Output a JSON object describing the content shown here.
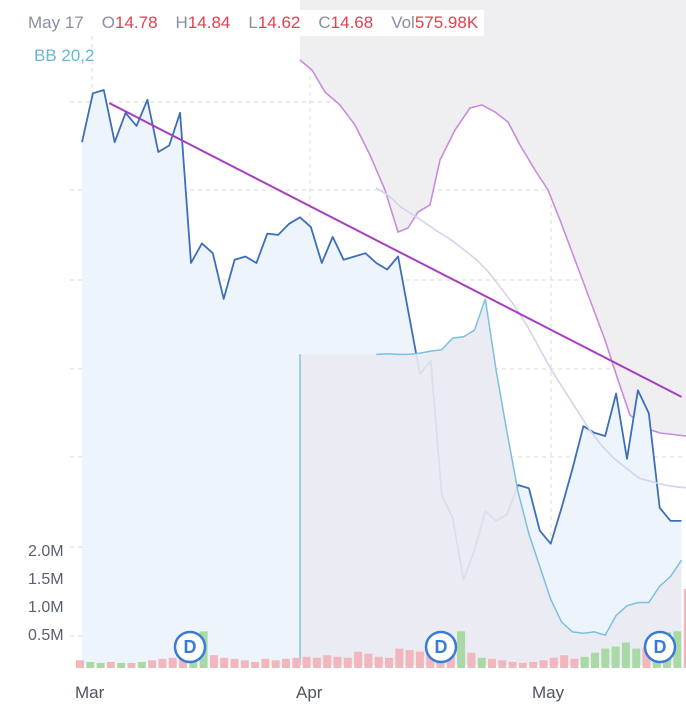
{
  "legend": {
    "date": "May 17",
    "open_label": "O",
    "open": "14.78",
    "high_label": "H",
    "high": "14.84",
    "low_label": "L",
    "low": "14.62",
    "close_label": "C",
    "close": "14.68",
    "volume_label": "Vol",
    "volume": "575.98K"
  },
  "indicator_label": "BB 20,2",
  "colors": {
    "price_line": "#3c6fb5",
    "price_fill": "#eef4fc",
    "bb_line": "#7cc0df",
    "bb_mid": "#d6d2ee",
    "bb_band_fill": "#e9eaf2",
    "indicator_line": "#c98bdb",
    "indicator_shade": "#efeff2",
    "trend_line": "#a63fbf",
    "vol_up": "#a9d9a5",
    "vol_down": "#f2b7bd",
    "dividend": "#3a7bd5"
  },
  "chart_data": {
    "type": "line",
    "x_labels": [
      "Mar",
      "Apr",
      "May"
    ],
    "volume_axis": {
      "ticks": [
        "0.5M",
        "1.0M",
        "1.5M",
        "2.0M"
      ],
      "tick_values": [
        0.5,
        1.0,
        1.5,
        2.0
      ],
      "ylim": [
        0,
        2.3
      ]
    },
    "price_ylim": [
      0,
      7
    ],
    "price": [
      6.2,
      6.95,
      7.0,
      6.2,
      6.65,
      6.45,
      6.85,
      6.05,
      6.15,
      6.65,
      4.35,
      4.65,
      4.5,
      3.8,
      4.4,
      4.45,
      4.35,
      4.8,
      4.78,
      4.95,
      5.05,
      4.9,
      4.35,
      4.75,
      4.4,
      4.45,
      4.5,
      4.35,
      4.25,
      4.45,
      3.55,
      2.65,
      2.85,
      0.8,
      0.45,
      -0.5,
      -0.05,
      0.55,
      0.4,
      0.5,
      0.95,
      0.9,
      0.25,
      0.05,
      0.6,
      1.2,
      1.85,
      1.75,
      1.7,
      2.35,
      1.35,
      2.4,
      2.05,
      0.6,
      0.4,
      0.4
    ],
    "bb_lower": [
      2.95,
      2.96,
      2.95,
      2.95,
      2.97,
      3.0,
      3.02,
      3.2,
      3.22,
      3.32,
      3.8,
      2.7,
      1.75,
      0.85,
      0.2,
      -0.3,
      -0.8,
      -1.15,
      -1.3,
      -1.32,
      -1.3,
      -1.35,
      -1.05,
      -0.9,
      -0.85,
      -0.85,
      -0.6,
      -0.45,
      -0.2
    ],
    "bb_middle": [
      5.5,
      5.38,
      5.2,
      5.08,
      4.95,
      4.82,
      4.7,
      4.55,
      4.4,
      4.2,
      3.95,
      3.7,
      3.4,
      3.05,
      2.7,
      2.4,
      2.1,
      1.8,
      1.55,
      1.35,
      1.2,
      1.05,
      1.0,
      0.95,
      0.92,
      0.9
    ],
    "indicator": [
      7.0,
      7.0,
      7.0,
      7.0,
      7.0,
      7.0,
      7.0,
      7.0,
      7.0,
      7.0,
      7.0,
      7.0,
      7.0,
      7.0,
      7.0,
      7.0,
      7.0,
      7.0,
      7.0,
      7.0,
      7.0,
      7.0,
      7.0,
      7.0,
      7.0,
      7.0,
      7.0,
      7.0,
      7.0,
      7.0,
      7.0,
      7.0,
      7.0
    ],
    "trend_line": {
      "from": [
        2.5,
        6.8
      ],
      "to": [
        55,
        2.3
      ]
    },
    "volume_m": [
      0.15,
      0.12,
      0.1,
      0.12,
      0.1,
      0.1,
      0.12,
      0.15,
      0.18,
      0.2,
      0.18,
      0.2,
      0.72,
      0.25,
      0.2,
      0.18,
      0.15,
      0.12,
      0.18,
      0.15,
      0.18,
      0.2,
      0.22,
      0.2,
      0.25,
      0.22,
      0.2,
      0.32,
      0.28,
      0.22,
      0.2,
      0.38,
      0.35,
      0.32,
      0.28,
      0.35,
      0.3,
      0.72,
      0.3,
      0.2,
      0.18,
      0.15,
      0.12,
      0.1,
      0.12,
      0.15,
      0.2,
      0.25,
      0.18,
      0.22,
      0.3,
      0.38,
      0.42,
      0.5,
      0.38,
      0.4,
      0.68,
      0.7,
      0.72,
      1.55,
      0.7
    ],
    "volume_up": [
      false,
      true,
      true,
      false,
      true,
      false,
      true,
      false,
      false,
      false,
      false,
      true,
      true,
      false,
      false,
      false,
      false,
      false,
      false,
      false,
      false,
      false,
      false,
      false,
      false,
      false,
      false,
      false,
      false,
      false,
      false,
      false,
      false,
      false,
      false,
      false,
      false,
      true,
      false,
      true,
      false,
      false,
      false,
      false,
      false,
      false,
      false,
      false,
      false,
      true,
      true,
      true,
      true,
      true,
      true,
      false,
      true,
      true,
      true,
      false,
      false
    ],
    "dividend_markers": [
      "D",
      "D",
      "D"
    ]
  }
}
